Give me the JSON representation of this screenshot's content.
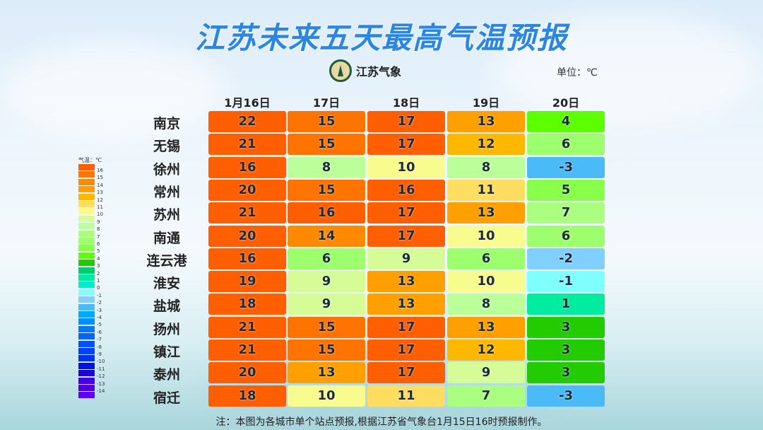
{
  "title": "江苏未来五天最高气温预报",
  "logo_text": "江苏气象",
  "unit": "单位：℃",
  "note": "注：本图为各城市单个站点预报,根据江苏省气象台1月15日16时预报制作。",
  "chart_data": {
    "type": "heatmap",
    "title": "江苏未来五天最高气温预报",
    "columns": [
      "1月16日",
      "17日",
      "18日",
      "19日",
      "20日"
    ],
    "rows": [
      "南京",
      "无锡",
      "徐州",
      "常州",
      "苏州",
      "南通",
      "连云港",
      "淮安",
      "盐城",
      "扬州",
      "镇江",
      "泰州",
      "宿迁"
    ],
    "values": [
      [
        22,
        15,
        17,
        13,
        4
      ],
      [
        21,
        15,
        17,
        12,
        6
      ],
      [
        16,
        8,
        10,
        8,
        -3
      ],
      [
        20,
        15,
        16,
        11,
        5
      ],
      [
        21,
        16,
        17,
        13,
        7
      ],
      [
        20,
        14,
        17,
        10,
        6
      ],
      [
        16,
        6,
        9,
        6,
        -2
      ],
      [
        19,
        9,
        13,
        10,
        -1
      ],
      [
        18,
        9,
        13,
        8,
        1
      ],
      [
        21,
        15,
        17,
        13,
        3
      ],
      [
        21,
        15,
        17,
        12,
        3
      ],
      [
        20,
        13,
        17,
        9,
        3
      ],
      [
        18,
        10,
        11,
        7,
        -3
      ]
    ],
    "legend": {
      "title": "气温：℃",
      "placement": "left",
      "labels": [
        "16",
        "15",
        "14",
        "13",
        "12",
        "11",
        "10",
        "9",
        "8",
        "7",
        "6",
        "5",
        "4",
        "3",
        "2",
        "1",
        "0",
        "-1",
        "-2",
        "-3",
        "-4",
        "-5",
        "-6",
        "-7",
        "-8",
        "-9",
        "-10",
        "-11",
        "-12",
        "-13",
        "-14"
      ],
      "colors": [
        "#ff5f00",
        "#ff7400",
        "#ff8a00",
        "#ffa000",
        "#ffb800",
        "#ffdd60",
        "#f8fc8f",
        "#d6fc98",
        "#baff9a",
        "#aaff80",
        "#9dff6d",
        "#88ff4a",
        "#5bff00",
        "#22cc00",
        "#00cc70",
        "#00eca0",
        "#00eccc",
        "#80ffff",
        "#80d0ff",
        "#4bbbf8",
        "#00a8ff",
        "#0090ff",
        "#0078ff",
        "#0064ff",
        "#0050ff",
        "#0040ff",
        "#0030f0",
        "#0010f0",
        "#2000e0",
        "#4000e8",
        "#5000e0",
        "#6000f0"
      ]
    }
  }
}
